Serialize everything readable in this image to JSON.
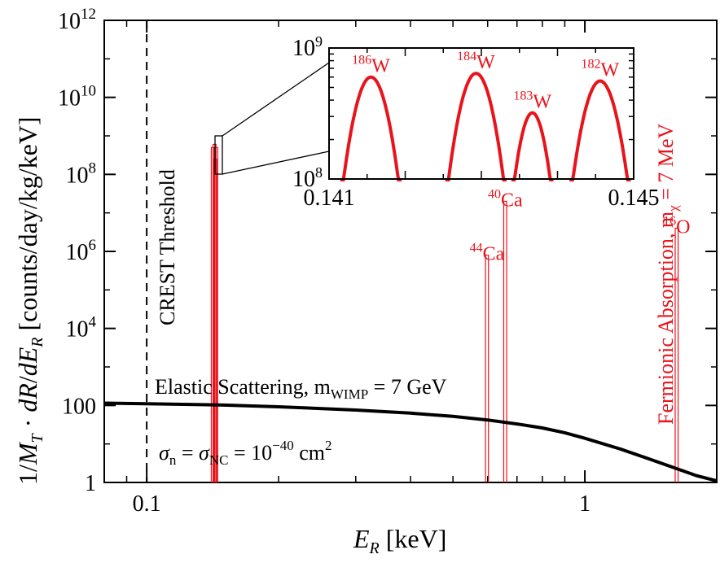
{
  "chart_data": [
    {
      "type": "line",
      "panel": "main",
      "xlabel": "E",
      "xlabel_sub": "R",
      "xlabel_unit": "[keV]",
      "ylabel": "1/M_T · dR/dE_R [counts/day/kg/keV]",
      "x_scale": "log",
      "y_scale": "log",
      "xlim": [
        0.08,
        2.0
      ],
      "ylim": [
        1,
        1000000000000.0
      ],
      "x_ticks": [
        {
          "value": 0.1,
          "label": "0.1"
        },
        {
          "value": 1,
          "label": "1"
        }
      ],
      "y_ticks": [
        {
          "value": 1,
          "base": "1",
          "exp": ""
        },
        {
          "value": 100,
          "base": "100",
          "exp": ""
        },
        {
          "value": 10000,
          "base": "10",
          "exp": "4"
        },
        {
          "value": 1000000,
          "base": "10",
          "exp": "6"
        },
        {
          "value": 100000000,
          "base": "10",
          "exp": "8"
        },
        {
          "value": 10000000000,
          "base": "10",
          "exp": "10"
        },
        {
          "value": 1000000000000,
          "base": "10",
          "exp": "12"
        }
      ],
      "threshold": {
        "x": 0.1,
        "label": "CREST Threshold"
      },
      "elastic": {
        "label_main": "Elastic Scattering,  m",
        "label_sub": "WIMP",
        "label_tail": " = 7 GeV",
        "x": [
          0.08,
          0.1,
          0.15,
          0.2,
          0.3,
          0.4,
          0.5,
          0.6,
          0.7,
          0.8,
          0.9,
          1.0,
          1.2,
          1.4,
          1.6,
          1.8,
          2.0
        ],
        "y": [
          115,
          111,
          102,
          92,
          76,
          63,
          52,
          42,
          33,
          26,
          19.5,
          14,
          7.5,
          4.1,
          2.4,
          1.5,
          1.1
        ]
      },
      "cross_section": {
        "sigma": "σ",
        "n_sub": "n",
        "nc_sub": "NC",
        "eq": " = ",
        "value": " = 10",
        "exp": "−40",
        "unit": " cm",
        "unit_exp": "2"
      },
      "absorption": {
        "label_main": "Fermionic Absorption,  m",
        "label_sub": "χ",
        "label_tail": " = 7 MeV",
        "peaks": [
          {
            "x": 0.1415,
            "peak": 500000000.0,
            "sup": "186",
            "element": "W"
          },
          {
            "x": 0.1428,
            "peak": 600000000.0,
            "sup": "184",
            "element": "W"
          },
          {
            "x": 0.1434,
            "peak": 250000000.0,
            "sup": "183",
            "element": "W"
          },
          {
            "x": 0.1441,
            "peak": 500000000.0,
            "sup": "182",
            "element": "W"
          },
          {
            "x": 0.598,
            "peak": 800000.0,
            "sup": "44",
            "element": "Ca"
          },
          {
            "x": 0.658,
            "peak": 20000000.0,
            "sup": "40",
            "element": "Ca"
          },
          {
            "x": 1.62,
            "peak": 4000000.0,
            "sup": "16",
            "element": "O"
          }
        ]
      }
    },
    {
      "type": "line",
      "panel": "inset",
      "x_scale": "linear",
      "y_scale": "log",
      "xlim": [
        0.141,
        0.145
      ],
      "ylim": [
        100000000,
        1000000000
      ],
      "x_ticks": [
        {
          "value": 0.141,
          "label": "0.141"
        },
        {
          "value": 0.145,
          "label": "0.145"
        }
      ],
      "y_ticks": [
        {
          "value": 100000000,
          "base": "10",
          "exp": "8"
        },
        {
          "value": 1000000000,
          "base": "10",
          "exp": "9"
        }
      ],
      "peaks": [
        {
          "sup": "186",
          "element": "W",
          "center": 0.14155,
          "half_width": 0.00035,
          "peak": 600000000.0
        },
        {
          "sup": "184",
          "element": "W",
          "center": 0.14293,
          "half_width": 0.00035,
          "peak": 640000000.0
        },
        {
          "sup": "183",
          "element": "W",
          "center": 0.14367,
          "half_width": 0.00024,
          "peak": 320000000.0
        },
        {
          "sup": "182",
          "element": "W",
          "center": 0.14456,
          "half_width": 0.00035,
          "peak": 560000000.0
        }
      ]
    }
  ]
}
